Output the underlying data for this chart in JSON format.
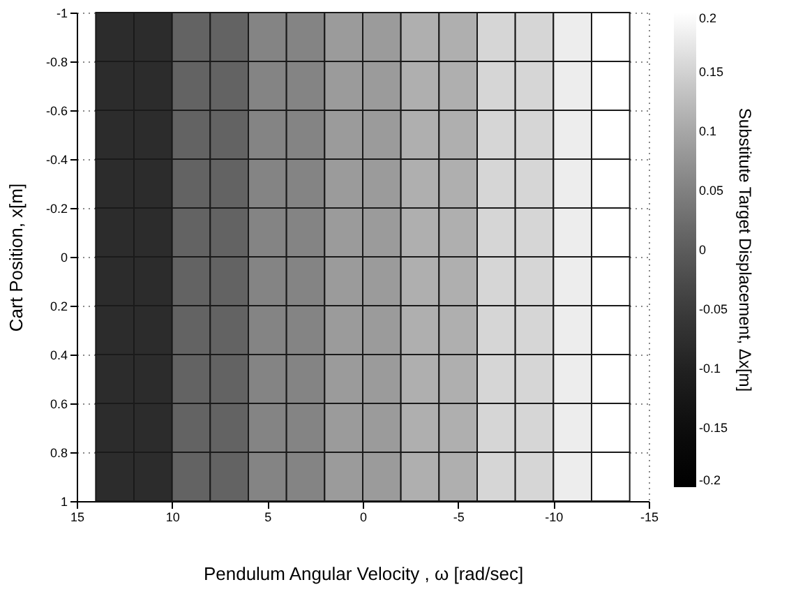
{
  "chart_data": {
    "type": "heatmap",
    "xlabel": "Pendulum Angular Velocity ,  ω [rad/sec]",
    "ylabel": "Cart Position, x[m]",
    "clabel": "Substitute Target Displacement, Δx[m]",
    "x": [
      13,
      11,
      9,
      7,
      5,
      3,
      1,
      -1,
      -3,
      -5,
      -7,
      -9,
      -11,
      -13
    ],
    "y": [
      -0.9,
      -0.7,
      -0.5,
      -0.3,
      -0.1,
      0.1,
      0.3,
      0.5,
      0.7,
      0.9
    ],
    "cells": [
      [
        -0.08,
        -0.08,
        0.01,
        0.01,
        0.055,
        0.055,
        0.085,
        0.085,
        0.11,
        0.11,
        0.155,
        0.155,
        0.18,
        0.2
      ],
      [
        -0.08,
        -0.08,
        0.01,
        0.01,
        0.055,
        0.055,
        0.085,
        0.085,
        0.11,
        0.11,
        0.155,
        0.155,
        0.18,
        0.2
      ],
      [
        -0.08,
        -0.08,
        0.01,
        0.01,
        0.055,
        0.055,
        0.085,
        0.085,
        0.11,
        0.11,
        0.155,
        0.155,
        0.18,
        0.2
      ],
      [
        -0.08,
        -0.08,
        0.01,
        0.01,
        0.055,
        0.055,
        0.085,
        0.085,
        0.11,
        0.11,
        0.155,
        0.155,
        0.18,
        0.2
      ],
      [
        -0.08,
        -0.08,
        0.01,
        0.01,
        0.055,
        0.055,
        0.085,
        0.085,
        0.11,
        0.11,
        0.155,
        0.155,
        0.18,
        0.2
      ],
      [
        -0.08,
        -0.08,
        0.01,
        0.01,
        0.055,
        0.055,
        0.085,
        0.085,
        0.11,
        0.11,
        0.155,
        0.155,
        0.18,
        0.2
      ],
      [
        -0.08,
        -0.08,
        0.01,
        0.01,
        0.055,
        0.055,
        0.085,
        0.085,
        0.11,
        0.11,
        0.155,
        0.155,
        0.18,
        0.2
      ],
      [
        -0.08,
        -0.08,
        0.01,
        0.01,
        0.055,
        0.055,
        0.085,
        0.085,
        0.11,
        0.11,
        0.155,
        0.155,
        0.18,
        0.2
      ],
      [
        -0.08,
        -0.08,
        0.01,
        0.01,
        0.055,
        0.055,
        0.085,
        0.085,
        0.11,
        0.11,
        0.155,
        0.155,
        0.18,
        0.2
      ],
      [
        -0.08,
        -0.08,
        0.01,
        0.01,
        0.055,
        0.055,
        0.085,
        0.085,
        0.11,
        0.11,
        0.155,
        0.155,
        0.18,
        0.2
      ]
    ],
    "xlim": [
      15,
      -15
    ],
    "xticks": [
      15,
      10,
      5,
      0,
      -5,
      -10,
      -15
    ],
    "ylim": [
      1,
      -1
    ],
    "yticks": [
      -1,
      -0.8,
      -0.6,
      -0.4,
      -0.2,
      0,
      0.2,
      0.4,
      0.6,
      0.8,
      1
    ],
    "clim": [
      -0.2,
      0.2
    ],
    "cticks": [
      -0.2,
      -0.15,
      -0.1,
      -0.05,
      0,
      0.05,
      0.1,
      0.15,
      0.2
    ],
    "grid": true
  }
}
